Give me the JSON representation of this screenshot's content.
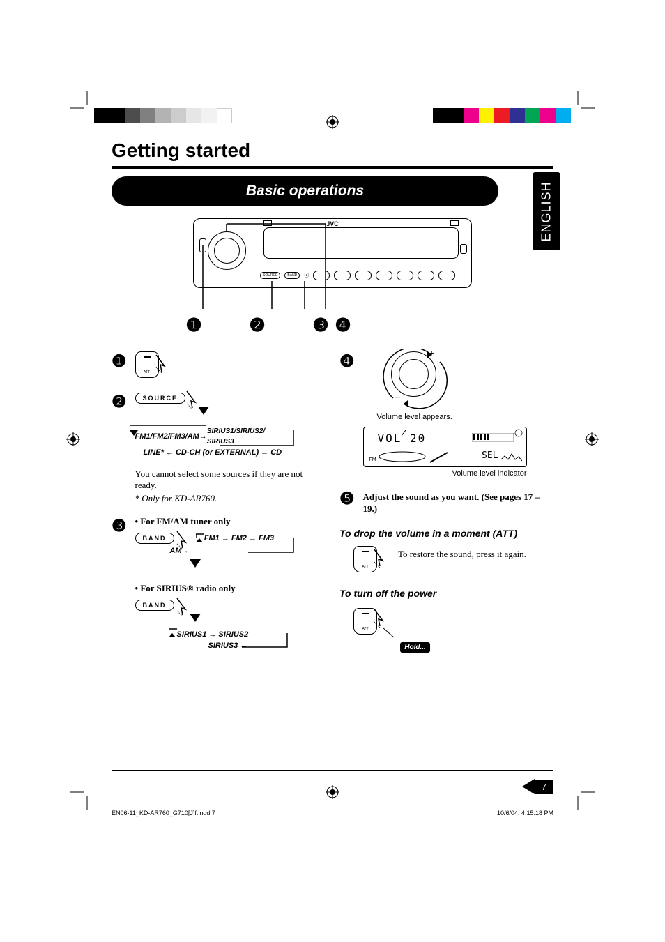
{
  "title": "Getting started",
  "section_title": "Basic operations",
  "language_tab": "ENGLISH",
  "brand": "JVC",
  "callouts": [
    "❶",
    "❷",
    "❸",
    "❹"
  ],
  "steps": {
    "s1": {
      "num": "❶"
    },
    "s2": {
      "num": "❷",
      "source_label": "SOURCE",
      "flow": "FM1/FM2/FM3/AM → SIRIUS1/SIRIUS2/SIRIUS3",
      "flow_line2": "LINE* ← CD-CH (or EXTERNAL) ← CD",
      "note": "You cannot select some sources if they are not ready.",
      "note2": "* Only for KD-AR760."
    },
    "s3": {
      "num": "❸",
      "heading_fm": "• For FM/AM tuner only",
      "band_label": "BAND",
      "fm_flow": "FM1 → FM2 → FM3",
      "fm_flow2": "AM",
      "heading_sirius": "• For SIRIUS® radio only",
      "sirius_flow": "SIRIUS1 → SIRIUS2",
      "sirius_flow2": "SIRIUS3"
    },
    "s4": {
      "num": "❹",
      "caption1": "Volume level appears.",
      "display_vol": "VOL  20",
      "display_sel": "SEL",
      "caption2": "Volume level indicator"
    },
    "s5": {
      "num": "❺",
      "text": "Adjust the sound as you want. (See pages 17 – 19.)"
    }
  },
  "att": {
    "heading": "To drop the volume in a moment (ATT)",
    "text": "To restore the sound, press it again."
  },
  "power_off": {
    "heading": "To turn off the power",
    "hold_label": "Hold..."
  },
  "att_btn_label": "ATT",
  "page_number": "7",
  "footer": {
    "filename": "EN06-11_KD-AR760_G710[J]f.indd   7",
    "timestamp": "10/6/04, 4:15:18 PM"
  },
  "colors": {
    "bars_left": [
      "#000000",
      "#000000",
      "#4d4d4d",
      "#808080",
      "#b3b3b3",
      "#cccccc",
      "#e6e6e6",
      "#f2f2f2",
      "#ffffff"
    ],
    "bars_right": [
      "#00aeef",
      "#ec008c",
      "#00a651",
      "#2e3192",
      "#ed1c24",
      "#fff200",
      "#ec008c",
      "#000000",
      "#000000"
    ]
  }
}
